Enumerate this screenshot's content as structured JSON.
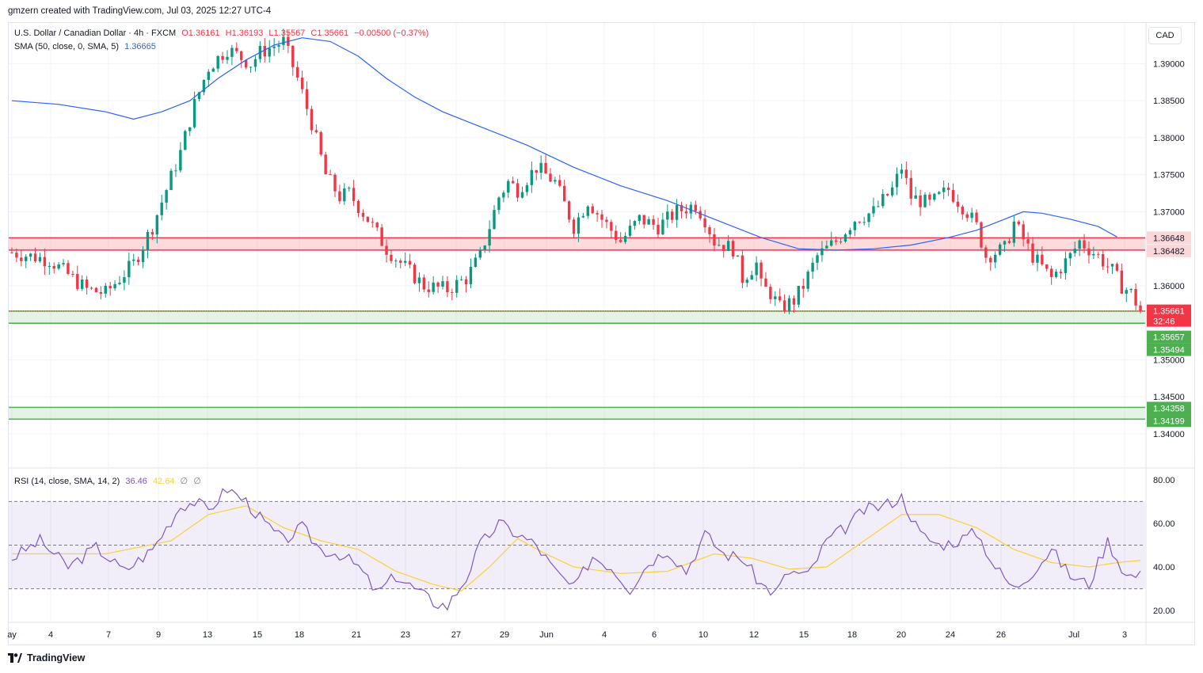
{
  "header": {
    "credit": "gmzern created with TradingView.com, Jul 03, 2025 12:27 UTC-4"
  },
  "legend_main": {
    "symbol": "U.S. Dollar / Canadian Dollar · 4h · FXCM",
    "open": "O1.36161",
    "high": "H1.36193",
    "low": "L1.35567",
    "close": "C1.35661",
    "change": "−0.00500 (−0.37%)"
  },
  "legend_sma": {
    "label": "SMA (50, close, 0, SMA, 5)",
    "value": "1.36665"
  },
  "legend_rsi": {
    "label": "RSI (14, close, SMA, 14, 2)",
    "value": "36.46",
    "sma_value": "42.64",
    "extra1": "∅",
    "extra2": "∅"
  },
  "currency_button": "CAD",
  "footer": {
    "brand": "TradingView"
  },
  "colors": {
    "up": "#089981",
    "down": "#f23645",
    "sma": "#2962ff",
    "rsi": "#7e57c2",
    "rsi_sma": "#f7d13a",
    "resistance_zone": "#f23645",
    "support_zone": "#4caf50"
  },
  "chart_data": [
    {
      "type": "candlestick",
      "title": "U.S. Dollar / Canadian Dollar · 4h · FXCM",
      "ylim": [
        1.3355,
        1.3955
      ],
      "y_ticks": [
        1.39,
        1.385,
        1.38,
        1.375,
        1.37,
        1.365,
        1.36,
        1.355,
        1.35,
        1.345,
        1.34
      ],
      "y_tick_labels": [
        "1.39000",
        "1.38500",
        "1.38000",
        "1.37500",
        "1.37000",
        "1.36500",
        "1.36000",
        "1.35500",
        "1.35000",
        "1.34500",
        "1.34000"
      ],
      "x_tick_labels": [
        "ay",
        "4",
        "7",
        "9",
        "13",
        "15",
        "18",
        "21",
        "23",
        "27",
        "29",
        "Jun",
        "4",
        "6",
        "10",
        "12",
        "15",
        "18",
        "20",
        "24",
        "26",
        "Jul",
        "3"
      ],
      "zones": [
        {
          "name": "resistance",
          "from": 1.36482,
          "to": 1.36648,
          "labels": [
            "1.36648",
            "1.36482"
          ]
        },
        {
          "name": "support",
          "from": 1.35494,
          "to": 1.35657,
          "labels": [
            "1.35657",
            "1.35494"
          ]
        },
        {
          "name": "support-2",
          "from": 1.34199,
          "to": 1.34358,
          "labels": [
            "1.34358",
            "1.34199"
          ]
        }
      ],
      "last_price": {
        "value": 1.35661,
        "label": "1.35661",
        "countdown": "32:46"
      },
      "close_path": [
        [
          0,
          1.3645
        ],
        [
          8,
          1.3635
        ],
        [
          16,
          1.3595
        ],
        [
          20,
          1.359
        ],
        [
          26,
          1.363
        ],
        [
          30,
          1.368
        ],
        [
          36,
          1.378
        ],
        [
          39,
          1.3845
        ],
        [
          42,
          1.3895
        ],
        [
          46,
          1.392
        ],
        [
          51,
          1.39
        ],
        [
          53,
          1.3915
        ],
        [
          58,
          1.393
        ],
        [
          61,
          1.388
        ],
        [
          64,
          1.382
        ],
        [
          67,
          1.375
        ],
        [
          70,
          1.372
        ],
        [
          72,
          1.3725
        ],
        [
          76,
          1.369
        ],
        [
          80,
          1.365
        ],
        [
          84,
          1.3625
        ],
        [
          88,
          1.36
        ],
        [
          93,
          1.3595
        ],
        [
          97,
          1.361
        ],
        [
          100,
          1.364
        ],
        [
          104,
          1.372
        ],
        [
          106,
          1.374
        ],
        [
          108,
          1.373
        ],
        [
          112,
          1.376
        ],
        [
          116,
          1.374
        ],
        [
          120,
          1.368
        ],
        [
          123,
          1.3715
        ],
        [
          126,
          1.369
        ],
        [
          130,
          1.366
        ],
        [
          134,
          1.369
        ],
        [
          138,
          1.368
        ],
        [
          142,
          1.37
        ],
        [
          146,
          1.371
        ],
        [
          148,
          1.369
        ],
        [
          150,
          1.366
        ],
        [
          154,
          1.365
        ],
        [
          156,
          1.361
        ],
        [
          159,
          1.363
        ],
        [
          160,
          1.36
        ],
        [
          162,
          1.359
        ],
        [
          164,
          1.357
        ],
        [
          167,
          1.358
        ],
        [
          169,
          1.36
        ],
        [
          172,
          1.364
        ],
        [
          176,
          1.366
        ],
        [
          180,
          1.369
        ],
        [
          184,
          1.37
        ],
        [
          188,
          1.373
        ],
        [
          190,
          1.376
        ],
        [
          192,
          1.372
        ],
        [
          196,
          1.371
        ],
        [
          200,
          1.373
        ],
        [
          204,
          1.37
        ],
        [
          206,
          1.368
        ],
        [
          208,
          1.364
        ],
        [
          212,
          1.365
        ],
        [
          214,
          1.3685
        ],
        [
          218,
          1.364
        ],
        [
          222,
          1.361
        ],
        [
          226,
          1.364
        ],
        [
          228,
          1.366
        ],
        [
          232,
          1.364
        ],
        [
          235,
          1.362
        ],
        [
          237,
          1.36
        ],
        [
          239,
          1.359
        ],
        [
          241,
          1.3566
        ]
      ],
      "sma_path": [
        [
          0,
          1.385
        ],
        [
          10,
          1.3845
        ],
        [
          20,
          1.3835
        ],
        [
          26,
          1.3825
        ],
        [
          32,
          1.3835
        ],
        [
          38,
          1.385
        ],
        [
          44,
          1.388
        ],
        [
          50,
          1.3905
        ],
        [
          56,
          1.3925
        ],
        [
          62,
          1.3935
        ],
        [
          68,
          1.393
        ],
        [
          74,
          1.391
        ],
        [
          80,
          1.388
        ],
        [
          86,
          1.3855
        ],
        [
          92,
          1.3835
        ],
        [
          100,
          1.3815
        ],
        [
          110,
          1.379
        ],
        [
          120,
          1.376
        ],
        [
          130,
          1.3735
        ],
        [
          140,
          1.3715
        ],
        [
          150,
          1.369
        ],
        [
          160,
          1.3665
        ],
        [
          168,
          1.365
        ],
        [
          176,
          1.3648
        ],
        [
          184,
          1.365
        ],
        [
          192,
          1.3655
        ],
        [
          200,
          1.3665
        ],
        [
          206,
          1.3675
        ],
        [
          212,
          1.369
        ],
        [
          216,
          1.37
        ],
        [
          220,
          1.3698
        ],
        [
          226,
          1.369
        ],
        [
          232,
          1.368
        ],
        [
          236,
          1.3666
        ]
      ]
    },
    {
      "type": "line",
      "title": "RSI (14, close, SMA, 14, 2)",
      "ylim": [
        15,
        85
      ],
      "y_ticks": [
        80,
        60,
        40,
        20
      ],
      "y_tick_labels": [
        "80.00",
        "60.00",
        "40.00",
        "20.00"
      ],
      "bands": {
        "upper": 70,
        "middle": 50,
        "lower": 30
      },
      "series": [
        {
          "name": "RSI",
          "values": [
            [
              0,
              44
            ],
            [
              6,
              52
            ],
            [
              12,
              40
            ],
            [
              18,
              49
            ],
            [
              24,
              38
            ],
            [
              30,
              48
            ],
            [
              36,
              68
            ],
            [
              39,
              70
            ],
            [
              42,
              66
            ],
            [
              46,
              76
            ],
            [
              50,
              70
            ],
            [
              54,
              60
            ],
            [
              58,
              52
            ],
            [
              62,
              58
            ],
            [
              66,
              48
            ],
            [
              70,
              46
            ],
            [
              74,
              40
            ],
            [
              78,
              28
            ],
            [
              82,
              36
            ],
            [
              86,
              30
            ],
            [
              90,
              24
            ],
            [
              93,
              22
            ],
            [
              97,
              35
            ],
            [
              100,
              50
            ],
            [
              104,
              60
            ],
            [
              108,
              55
            ],
            [
              112,
              50
            ],
            [
              116,
              38
            ],
            [
              120,
              30
            ],
            [
              124,
              45
            ],
            [
              128,
              40
            ],
            [
              132,
              30
            ],
            [
              136,
              42
            ],
            [
              140,
              48
            ],
            [
              144,
              38
            ],
            [
              148,
              55
            ],
            [
              152,
              46
            ],
            [
              156,
              44
            ],
            [
              160,
              32
            ],
            [
              163,
              28
            ],
            [
              166,
              38
            ],
            [
              170,
              36
            ],
            [
              174,
              52
            ],
            [
              178,
              58
            ],
            [
              182,
              66
            ],
            [
              186,
              68
            ],
            [
              190,
              72
            ],
            [
              194,
              55
            ],
            [
              198,
              50
            ],
            [
              202,
              52
            ],
            [
              206,
              56
            ],
            [
              210,
              40
            ],
            [
              214,
              30
            ],
            [
              218,
              38
            ],
            [
              222,
              48
            ],
            [
              226,
              36
            ],
            [
              230,
              32
            ],
            [
              234,
              52
            ],
            [
              238,
              36
            ],
            [
              241,
              36
            ]
          ]
        },
        {
          "name": "RSI SMA",
          "values": [
            [
              0,
              46
            ],
            [
              20,
              46
            ],
            [
              34,
              52
            ],
            [
              42,
              64
            ],
            [
              50,
              68
            ],
            [
              58,
              58
            ],
            [
              66,
              52
            ],
            [
              74,
              48
            ],
            [
              82,
              38
            ],
            [
              90,
              32
            ],
            [
              96,
              29
            ],
            [
              102,
              40
            ],
            [
              108,
              53
            ],
            [
              114,
              46
            ],
            [
              120,
              40
            ],
            [
              130,
              37
            ],
            [
              140,
              38
            ],
            [
              150,
              46
            ],
            [
              158,
              44
            ],
            [
              166,
              39
            ],
            [
              174,
              40
            ],
            [
              182,
              52
            ],
            [
              190,
              64
            ],
            [
              198,
              64
            ],
            [
              206,
              58
            ],
            [
              214,
              48
            ],
            [
              222,
              42
            ],
            [
              230,
              40
            ],
            [
              236,
              42
            ],
            [
              241,
              43
            ]
          ]
        }
      ]
    }
  ]
}
